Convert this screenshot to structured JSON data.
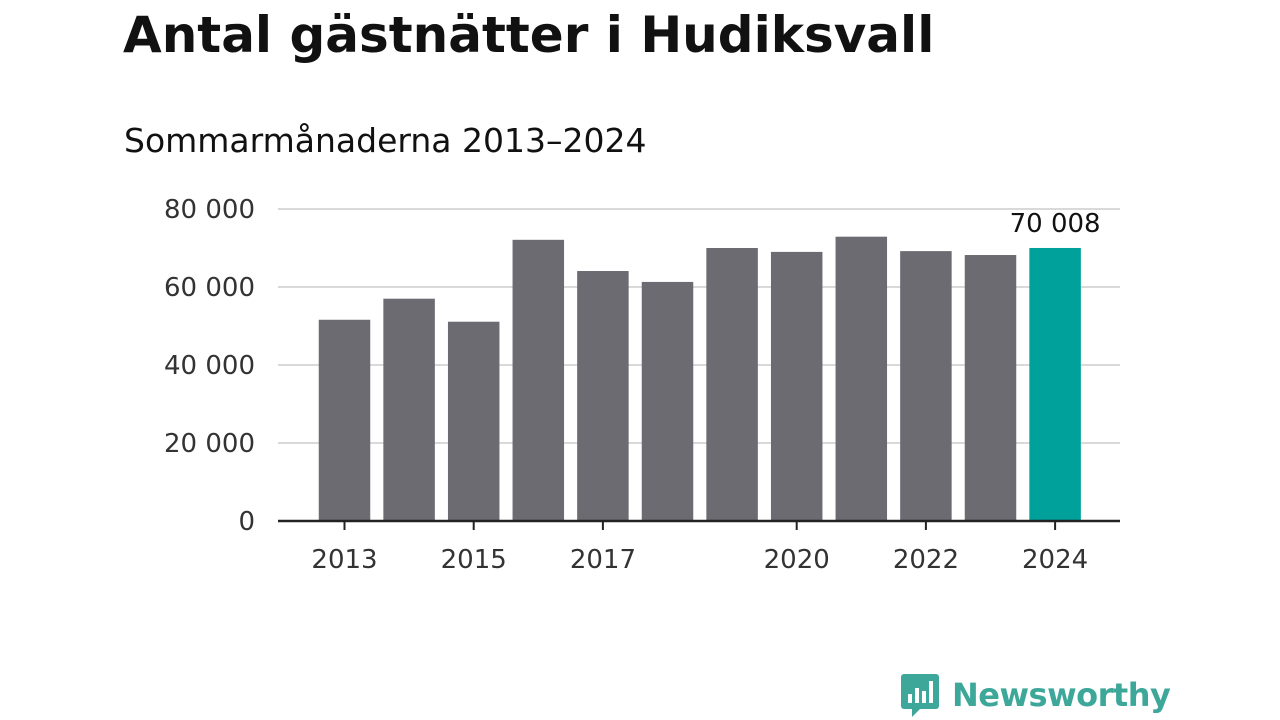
{
  "title": "Antal gästnätter i Hudiksvall",
  "subtitle": "Sommarmånaderna 2013–2024",
  "brand": {
    "name": "Newsworthy",
    "icon": "newsworthy-logo-icon",
    "color": "#3da89a"
  },
  "chart_data": {
    "type": "bar",
    "title": "Antal gästnätter i Hudiksvall",
    "subtitle": "Sommarmånaderna 2013–2024",
    "categories": [
      "2013",
      "2014",
      "2015",
      "2016",
      "2017",
      "2018",
      "2019",
      "2020",
      "2021",
      "2022",
      "2023",
      "2024"
    ],
    "values": [
      51600,
      57000,
      51100,
      72100,
      64100,
      61300,
      70000,
      69000,
      72900,
      69200,
      68200,
      70008
    ],
    "xtick_labels": [
      "2013",
      "2015",
      "2017",
      "2020",
      "2022",
      "2024"
    ],
    "yticks": [
      0,
      20000,
      40000,
      60000,
      80000
    ],
    "ytick_labels": [
      "0",
      "20 000",
      "40 000",
      "60 000",
      "80 000"
    ],
    "ylim": [
      0,
      80000
    ],
    "xlabel": "",
    "ylabel": "",
    "grid": true,
    "legend": "none",
    "highlight_index": 11,
    "highlight_label": "70 008",
    "colors": {
      "bar": "#6c6b71",
      "highlight": "#00a19a",
      "grid": "#d9d9d9",
      "axis": "#222222",
      "tick_text": "#333333"
    }
  }
}
